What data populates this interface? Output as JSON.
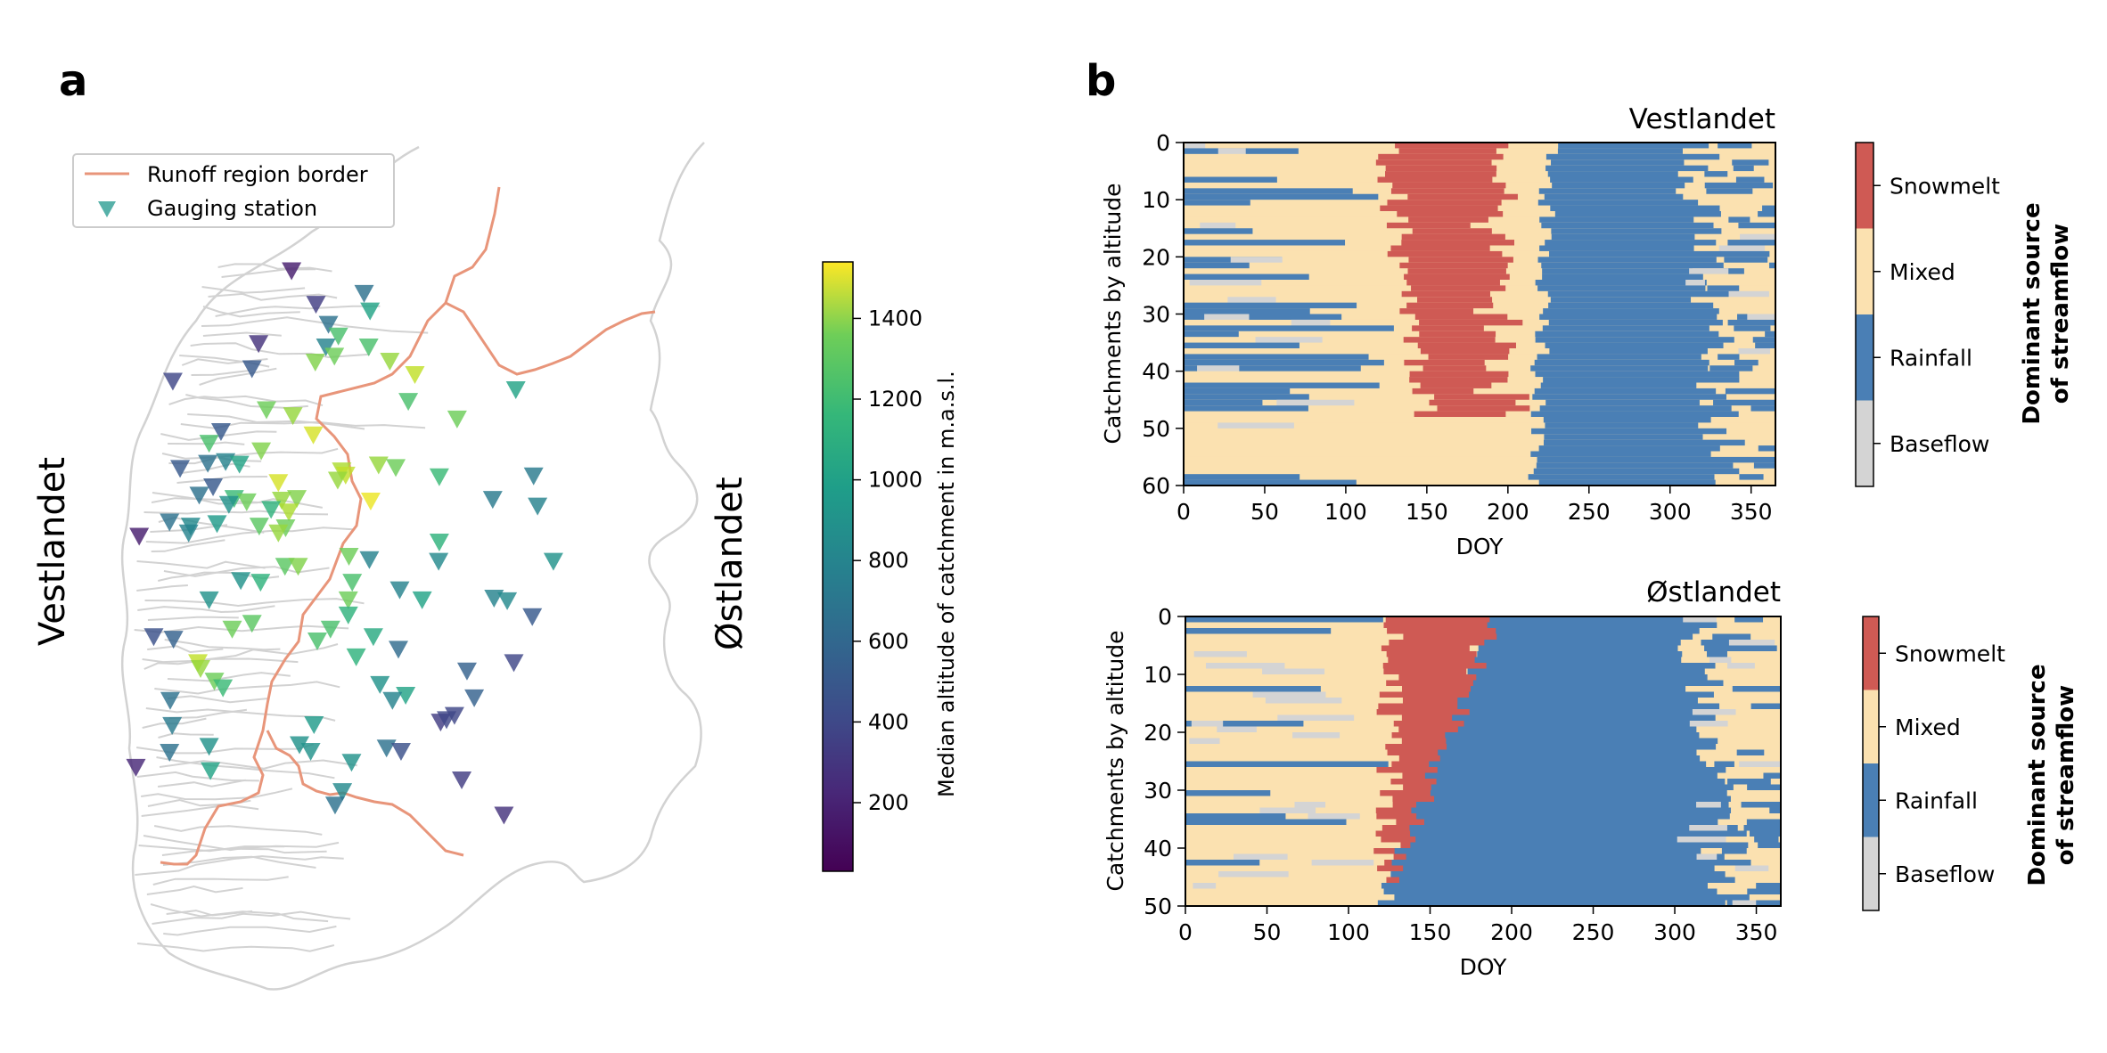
{
  "panel_a": {
    "label": "a",
    "region_left_label": "Vestlandet",
    "region_right_label": "Østlandet",
    "legend": {
      "border_label": "Runoff region border",
      "station_label": "Gauging station",
      "border_color": "#e8957a",
      "station_color": "#3aa39a"
    },
    "colorbar": {
      "label": "Median altitude of catchment in m.a.s.l.",
      "min": 30,
      "max": 1540,
      "ticks": [
        "200",
        "400",
        "600",
        "800",
        "1000",
        "1200",
        "1400"
      ]
    }
  },
  "panel_b": {
    "label": "b",
    "legend_title_line1": "Dominant source",
    "legend_title_line2": "of streamflow"
  },
  "chart_data": [
    {
      "type": "scatter",
      "panel": "a",
      "marker": "triangle-down",
      "color_scale": "viridis",
      "value_name": "median altitude (m.a.s.l.)",
      "x_range": [
        0,
        100
      ],
      "y_range": [
        0,
        100
      ],
      "stations": [
        {
          "x": 38.8,
          "y": 14.2,
          "alt": 150
        },
        {
          "x": 49.8,
          "y": 16.9,
          "alt": 600
        },
        {
          "x": 42.5,
          "y": 18.2,
          "alt": 300
        },
        {
          "x": 44.4,
          "y": 20.6,
          "alt": 600
        },
        {
          "x": 50.7,
          "y": 19.0,
          "alt": 900
        },
        {
          "x": 45.9,
          "y": 22.0,
          "alt": 1100
        },
        {
          "x": 44.0,
          "y": 23.3,
          "alt": 700
        },
        {
          "x": 33.8,
          "y": 22.9,
          "alt": 250
        },
        {
          "x": 50.5,
          "y": 23.3,
          "alt": 1100
        },
        {
          "x": 45.3,
          "y": 24.4,
          "alt": 1200
        },
        {
          "x": 42.4,
          "y": 25.1,
          "alt": 1250
        },
        {
          "x": 53.7,
          "y": 25.0,
          "alt": 1300
        },
        {
          "x": 32.8,
          "y": 25.9,
          "alt": 450
        },
        {
          "x": 57.5,
          "y": 26.6,
          "alt": 1400
        },
        {
          "x": 20.8,
          "y": 27.4,
          "alt": 350
        },
        {
          "x": 72.8,
          "y": 28.4,
          "alt": 900
        },
        {
          "x": 56.5,
          "y": 29.8,
          "alt": 1100
        },
        {
          "x": 35.0,
          "y": 30.8,
          "alt": 1200
        },
        {
          "x": 39.0,
          "y": 31.5,
          "alt": 1300
        },
        {
          "x": 63.9,
          "y": 31.9,
          "alt": 1200
        },
        {
          "x": 28.1,
          "y": 33.4,
          "alt": 450
        },
        {
          "x": 42.1,
          "y": 33.8,
          "alt": 1450
        },
        {
          "x": 26.3,
          "y": 34.8,
          "alt": 1100
        },
        {
          "x": 34.2,
          "y": 35.7,
          "alt": 1250
        },
        {
          "x": 26.1,
          "y": 37.2,
          "alt": 600
        },
        {
          "x": 28.8,
          "y": 37.0,
          "alt": 700
        },
        {
          "x": 30.9,
          "y": 37.3,
          "alt": 900
        },
        {
          "x": 21.9,
          "y": 37.8,
          "alt": 450
        },
        {
          "x": 52.0,
          "y": 37.4,
          "alt": 1300
        },
        {
          "x": 54.6,
          "y": 37.7,
          "alt": 1200
        },
        {
          "x": 46.4,
          "y": 38.1,
          "alt": 1350
        },
        {
          "x": 47.0,
          "y": 38.6,
          "alt": 1400
        },
        {
          "x": 45.8,
          "y": 39.2,
          "alt": 1300
        },
        {
          "x": 36.8,
          "y": 39.5,
          "alt": 1450
        },
        {
          "x": 61.2,
          "y": 38.8,
          "alt": 1050
        },
        {
          "x": 75.5,
          "y": 38.7,
          "alt": 650
        },
        {
          "x": 26.9,
          "y": 40.0,
          "alt": 450
        },
        {
          "x": 24.8,
          "y": 41.0,
          "alt": 600
        },
        {
          "x": 30.1,
          "y": 41.4,
          "alt": 1050
        },
        {
          "x": 32.0,
          "y": 41.8,
          "alt": 1200
        },
        {
          "x": 37.3,
          "y": 41.6,
          "alt": 1300
        },
        {
          "x": 39.6,
          "y": 41.4,
          "alt": 1250
        },
        {
          "x": 50.8,
          "y": 41.7,
          "alt": 1500
        },
        {
          "x": 29.3,
          "y": 42.1,
          "alt": 800
        },
        {
          "x": 69.3,
          "y": 41.5,
          "alt": 650
        },
        {
          "x": 35.7,
          "y": 42.7,
          "alt": 1000
        },
        {
          "x": 38.4,
          "y": 43.0,
          "alt": 1350
        },
        {
          "x": 76.1,
          "y": 42.3,
          "alt": 700
        },
        {
          "x": 20.3,
          "y": 44.2,
          "alt": 600
        },
        {
          "x": 23.5,
          "y": 44.7,
          "alt": 750
        },
        {
          "x": 27.5,
          "y": 44.4,
          "alt": 850
        },
        {
          "x": 33.9,
          "y": 44.7,
          "alt": 1150
        },
        {
          "x": 37.9,
          "y": 44.9,
          "alt": 1200
        },
        {
          "x": 23.2,
          "y": 45.5,
          "alt": 700
        },
        {
          "x": 15.7,
          "y": 45.9,
          "alt": 150
        },
        {
          "x": 36.8,
          "y": 45.5,
          "alt": 1300
        },
        {
          "x": 61.2,
          "y": 46.6,
          "alt": 1000
        },
        {
          "x": 47.5,
          "y": 48.3,
          "alt": 1200
        },
        {
          "x": 50.6,
          "y": 48.7,
          "alt": 700
        },
        {
          "x": 61.1,
          "y": 48.9,
          "alt": 750
        },
        {
          "x": 37.8,
          "y": 49.5,
          "alt": 1150
        },
        {
          "x": 39.8,
          "y": 49.5,
          "alt": 1250
        },
        {
          "x": 78.5,
          "y": 48.9,
          "alt": 800
        },
        {
          "x": 31.1,
          "y": 51.2,
          "alt": 800
        },
        {
          "x": 34.1,
          "y": 51.4,
          "alt": 1000
        },
        {
          "x": 48.0,
          "y": 51.4,
          "alt": 1100
        },
        {
          "x": 55.2,
          "y": 52.3,
          "alt": 700
        },
        {
          "x": 26.3,
          "y": 53.5,
          "alt": 800
        },
        {
          "x": 47.4,
          "y": 53.5,
          "alt": 1200
        },
        {
          "x": 58.6,
          "y": 53.5,
          "alt": 900
        },
        {
          "x": 69.5,
          "y": 53.3,
          "alt": 700
        },
        {
          "x": 71.5,
          "y": 53.6,
          "alt": 750
        },
        {
          "x": 47.4,
          "y": 55.3,
          "alt": 1000
        },
        {
          "x": 75.3,
          "y": 55.5,
          "alt": 450
        },
        {
          "x": 32.8,
          "y": 56.3,
          "alt": 1150
        },
        {
          "x": 29.8,
          "y": 57.0,
          "alt": 1200
        },
        {
          "x": 44.7,
          "y": 57.0,
          "alt": 1100
        },
        {
          "x": 17.9,
          "y": 57.9,
          "alt": 400
        },
        {
          "x": 20.9,
          "y": 58.2,
          "alt": 500
        },
        {
          "x": 42.7,
          "y": 58.4,
          "alt": 1100
        },
        {
          "x": 51.2,
          "y": 57.9,
          "alt": 950
        },
        {
          "x": 55.0,
          "y": 59.4,
          "alt": 550
        },
        {
          "x": 48.6,
          "y": 60.3,
          "alt": 1000
        },
        {
          "x": 24.6,
          "y": 61.0,
          "alt": 1400
        },
        {
          "x": 25.0,
          "y": 61.7,
          "alt": 1300
        },
        {
          "x": 72.5,
          "y": 61.0,
          "alt": 350
        },
        {
          "x": 65.4,
          "y": 62.0,
          "alt": 500
        },
        {
          "x": 27.1,
          "y": 63.2,
          "alt": 1200
        },
        {
          "x": 28.4,
          "y": 64.0,
          "alt": 1050
        },
        {
          "x": 52.2,
          "y": 63.6,
          "alt": 800
        },
        {
          "x": 56.1,
          "y": 64.9,
          "alt": 900
        },
        {
          "x": 54.1,
          "y": 65.5,
          "alt": 700
        },
        {
          "x": 66.5,
          "y": 65.2,
          "alt": 500
        },
        {
          "x": 20.4,
          "y": 65.5,
          "alt": 600
        },
        {
          "x": 63.5,
          "y": 67.3,
          "alt": 350
        },
        {
          "x": 61.4,
          "y": 68.1,
          "alt": 300
        },
        {
          "x": 62.3,
          "y": 67.8,
          "alt": 350
        },
        {
          "x": 20.7,
          "y": 68.5,
          "alt": 650
        },
        {
          "x": 42.2,
          "y": 68.4,
          "alt": 850
        },
        {
          "x": 40.0,
          "y": 70.8,
          "alt": 800
        },
        {
          "x": 26.3,
          "y": 71.0,
          "alt": 800
        },
        {
          "x": 53.2,
          "y": 71.2,
          "alt": 600
        },
        {
          "x": 55.4,
          "y": 71.6,
          "alt": 400
        },
        {
          "x": 41.7,
          "y": 71.6,
          "alt": 800
        },
        {
          "x": 20.3,
          "y": 71.7,
          "alt": 600
        },
        {
          "x": 47.9,
          "y": 72.9,
          "alt": 800
        },
        {
          "x": 26.5,
          "y": 73.9,
          "alt": 900
        },
        {
          "x": 15.2,
          "y": 73.5,
          "alt": 200
        },
        {
          "x": 64.6,
          "y": 75.0,
          "alt": 300
        },
        {
          "x": 46.5,
          "y": 76.4,
          "alt": 750
        },
        {
          "x": 45.4,
          "y": 78.0,
          "alt": 600
        },
        {
          "x": 71.0,
          "y": 79.2,
          "alt": 250
        }
      ]
    },
    {
      "type": "heatmap",
      "panel": "b-top",
      "title": "Vestlandet",
      "xlabel": "DOY",
      "ylabel": "Catchments by altitude",
      "xlim": [
        0,
        365
      ],
      "ylim": [
        60,
        0
      ],
      "xticks": [
        "0",
        "50",
        "100",
        "150",
        "200",
        "250",
        "300",
        "350"
      ],
      "yticks": [
        "0",
        "10",
        "20",
        "30",
        "40",
        "50",
        "60"
      ],
      "categories": [
        "Baseflow",
        "Rainfall",
        "Mixed",
        "Snowmelt"
      ],
      "category_colors": [
        "#d4d4d4",
        "#4a7fb5",
        "#fbe1b0",
        "#cf5a54"
      ],
      "colorbar_labels": [
        "Snowmelt",
        "Mixed",
        "Rainfall",
        "Baseflow"
      ],
      "n_rows": 60,
      "summary": "Baseflow=0 Rainfall=1 Mixed=2 Snowmelt=3; snowmelt roughly DOY 110-210 in rows 0-45, rainfall dominant from DOY ~220-330"
    },
    {
      "type": "heatmap",
      "panel": "b-bottom",
      "title": "Østlandet",
      "xlabel": "DOY",
      "ylabel": "Catchments by altitude",
      "xlim": [
        0,
        365
      ],
      "ylim": [
        50,
        0
      ],
      "xticks": [
        "0",
        "50",
        "100",
        "150",
        "200",
        "250",
        "300",
        "350"
      ],
      "yticks": [
        "0",
        "10",
        "20",
        "30",
        "40",
        "50"
      ],
      "categories": [
        "Baseflow",
        "Rainfall",
        "Mixed",
        "Snowmelt"
      ],
      "category_colors": [
        "#d4d4d4",
        "#4a7fb5",
        "#fbe1b0",
        "#cf5a54"
      ],
      "colorbar_labels": [
        "Snowmelt",
        "Mixed",
        "Rainfall",
        "Baseflow"
      ],
      "n_rows": 50,
      "summary": "Baseflow=0 Rainfall=1 Mixed=2 Snowmelt=3; snowmelt roughly DOY 100-190, rainfall dominant from DOY ~140-300"
    }
  ]
}
